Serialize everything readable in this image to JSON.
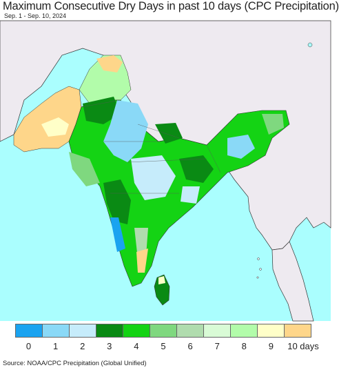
{
  "title": "Maximum Consecutive Dry Days in past 10 days (CPC Precipitation)",
  "subtitle": "Sep. 1 - Sep. 10, 2024",
  "legend": {
    "labels": [
      "0",
      "1",
      "2",
      "3",
      "4",
      "5",
      "6",
      "7",
      "8",
      "9",
      "10 days"
    ],
    "colors": [
      "#1aa3f0",
      "#8ad9f7",
      "#c6ecfb",
      "#0a8a14",
      "#14d314",
      "#7fd87f",
      "#b0dcae",
      "#d9fbd6",
      "#b2fcaa",
      "#ffffc8",
      "#fed68a"
    ]
  },
  "map_colors": {
    "ocean": "#aafefe",
    "land_outside": "#eeeaf0",
    "boundary": "#333333"
  },
  "source": "Source: NOAA/CPC Precipitation (Global Unified)"
}
